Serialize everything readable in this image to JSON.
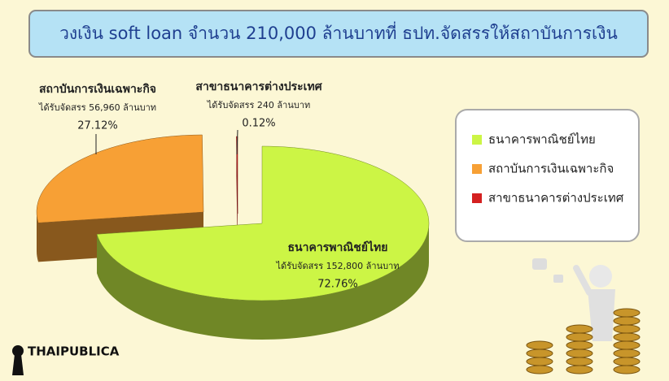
{
  "chart_data": {
    "type": "pie",
    "title": "วงเงิน soft loan จำนวน 210,000 ล้านบาทที่ ธปท.จัดสรรให้สถาบันการเงิน",
    "categories": [
      "ธนาคารพาณิชย์ไทย",
      "สถาบันการเงินเฉพาะกิจ",
      "สาขาธนาคารต่างประเทศ"
    ],
    "values": [
      72.76,
      27.12,
      0.12
    ],
    "value_labels": [
      "72.76%",
      "27.12%",
      "0.12%"
    ],
    "allocation_labels": [
      "ได้รับจัดสรร 152,800 ล้านบาท",
      "ได้รับจัดสรร 56,960 ล้านบาท",
      "ได้รับจัดสรร 240 ล้านบาท"
    ],
    "colors": [
      "#ccf545",
      "#f7a035",
      "#d42020"
    ],
    "legend": "right"
  },
  "logo": "THAIPUBLICA"
}
